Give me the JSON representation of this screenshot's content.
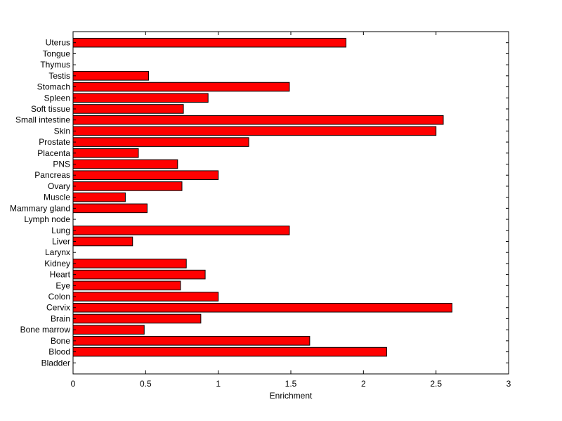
{
  "chart_data": {
    "type": "bar",
    "orientation": "horizontal",
    "title": "",
    "xlabel": "Enrichment",
    "ylabel": "",
    "xlim": [
      0,
      3
    ],
    "xticks": [
      0,
      0.5,
      1,
      1.5,
      2,
      2.5,
      3
    ],
    "xtick_labels": [
      "0",
      "0.5",
      "1",
      "1.5",
      "2",
      "2.5",
      "3"
    ],
    "grid": false,
    "legend": "none",
    "bar_color": "#ff0000",
    "bar_edge_color": "#000000",
    "categories": [
      "Bladder",
      "Blood",
      "Bone",
      "Bone marrow",
      "Brain",
      "Cervix",
      "Colon",
      "Eye",
      "Heart",
      "Kidney",
      "Larynx",
      "Liver",
      "Lung",
      "Lymph node",
      "Mammary gland",
      "Muscle",
      "Ovary",
      "Pancreas",
      "PNS",
      "Placenta",
      "Prostate",
      "Skin",
      "Small intestine",
      "Soft tissue",
      "Spleen",
      "Stomach",
      "Testis",
      "Thymus",
      "Tongue",
      "Uterus"
    ],
    "values": [
      0,
      2.16,
      1.63,
      0.49,
      0.88,
      2.61,
      1.0,
      0.74,
      0.91,
      0.78,
      0,
      0.41,
      1.49,
      0,
      0.51,
      0.36,
      0.75,
      1.0,
      0.72,
      0.45,
      1.21,
      2.5,
      2.55,
      0.76,
      0.93,
      1.49,
      0.52,
      0,
      0,
      1.88
    ]
  }
}
